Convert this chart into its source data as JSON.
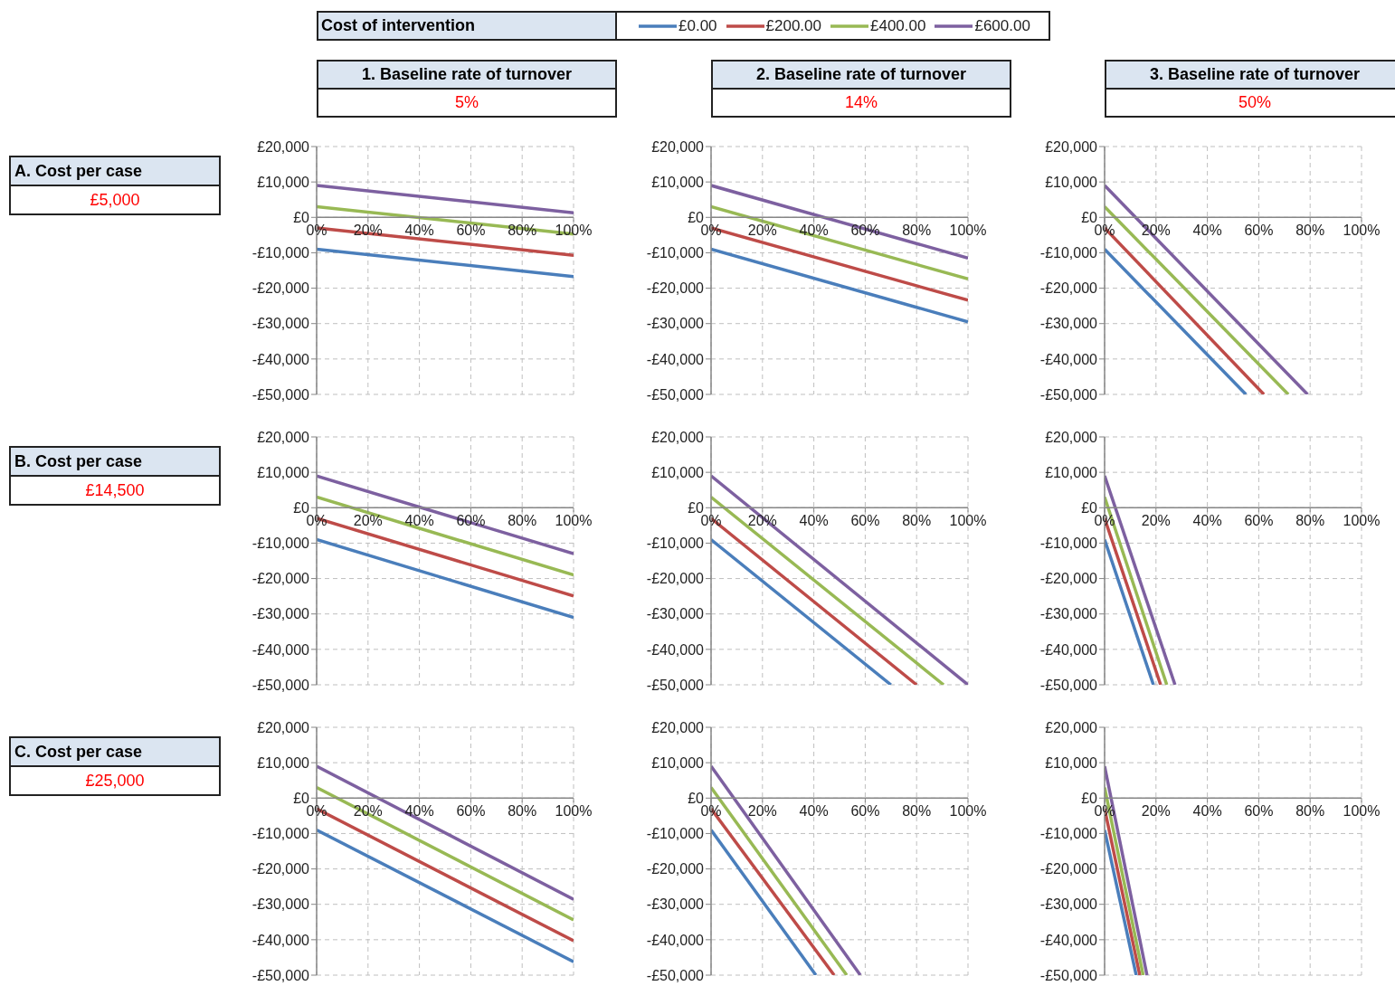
{
  "chart_data": [
    {
      "type": "line",
      "title": "1. Baseline rate of turnover",
      "subtitle": "5%",
      "annotations": [
        "A. Cost per case",
        "£5,000"
      ],
      "legend": "top",
      "legend_title": "Cost of intervention",
      "xlim": [
        0,
        100
      ],
      "xticks": [
        {
          "value": 0,
          "label": "0%"
        },
        {
          "value": 20,
          "label": "20%"
        },
        {
          "value": 40,
          "label": "40%"
        },
        {
          "value": 60,
          "label": "60%"
        },
        {
          "value": 80,
          "label": "80%"
        },
        {
          "value": 100,
          "label": "100%"
        }
      ],
      "ylim": [
        -50000,
        20000
      ],
      "yticks": [
        {
          "value": -50000,
          "label": "-£50,000"
        },
        {
          "value": -40000,
          "label": "-£40,000"
        },
        {
          "value": -30000,
          "label": "-£30,000"
        },
        {
          "value": -20000,
          "label": "-£20,000"
        },
        {
          "value": -10000,
          "label": "-£10,000"
        },
        {
          "value": 0,
          "label": "£0"
        },
        {
          "value": 10000,
          "label": "£10,000"
        },
        {
          "value": 20000,
          "label": "£20,000"
        }
      ],
      "grid": true,
      "series": [
        {
          "name": "£0.00",
          "color": "#4a7ebb",
          "x": [
            0,
            100
          ],
          "values": [
            -9000,
            -16700
          ]
        },
        {
          "name": "£200.00",
          "color": "#be4b48",
          "x": [
            0,
            100
          ],
          "values": [
            -3000,
            -10700
          ]
        },
        {
          "name": "£400.00",
          "color": "#98b954",
          "x": [
            0,
            100
          ],
          "values": [
            3000,
            -4700
          ]
        },
        {
          "name": "£600.00",
          "color": "#7d60a0",
          "x": [
            0,
            100
          ],
          "values": [
            9000,
            1300
          ]
        }
      ]
    },
    {
      "type": "line",
      "title": "2. Baseline rate of turnover",
      "subtitle": "14%",
      "xlim": [
        0,
        100
      ],
      "xticks": [
        {
          "value": 0,
          "label": "0%"
        },
        {
          "value": 20,
          "label": "20%"
        },
        {
          "value": 40,
          "label": "40%"
        },
        {
          "value": 60,
          "label": "60%"
        },
        {
          "value": 80,
          "label": "80%"
        },
        {
          "value": 100,
          "label": "100%"
        }
      ],
      "ylim": [
        -50000,
        20000
      ],
      "yticks": [
        {
          "value": -50000,
          "label": "-£50,000"
        },
        {
          "value": -40000,
          "label": "-£40,000"
        },
        {
          "value": -30000,
          "label": "-£30,000"
        },
        {
          "value": -20000,
          "label": "-£20,000"
        },
        {
          "value": -10000,
          "label": "-£10,000"
        },
        {
          "value": 0,
          "label": "£0"
        },
        {
          "value": 10000,
          "label": "£10,000"
        },
        {
          "value": 20000,
          "label": "£20,000"
        }
      ],
      "grid": true,
      "series": [
        {
          "color": "#4a7ebb",
          "x": [
            0,
            100
          ],
          "values": [
            -9000,
            -29500
          ]
        },
        {
          "color": "#be4b48",
          "x": [
            0,
            100
          ],
          "values": [
            -3000,
            -23400
          ]
        },
        {
          "color": "#98b954",
          "x": [
            0,
            100
          ],
          "values": [
            3000,
            -17400
          ]
        },
        {
          "color": "#7d60a0",
          "x": [
            0,
            100
          ],
          "values": [
            9000,
            -11500
          ]
        }
      ]
    },
    {
      "type": "line",
      "title": "3. Baseline rate of turnover",
      "subtitle": "50%",
      "xlim": [
        0,
        100
      ],
      "xticks": [
        {
          "value": 0,
          "label": "0%"
        },
        {
          "value": 20,
          "label": "20%"
        },
        {
          "value": 40,
          "label": "40%"
        },
        {
          "value": 60,
          "label": "60%"
        },
        {
          "value": 80,
          "label": "80%"
        },
        {
          "value": 100,
          "label": "100%"
        }
      ],
      "ylim": [
        -50000,
        20000
      ],
      "yticks": [
        {
          "value": -50000,
          "label": "-£50,000"
        },
        {
          "value": -40000,
          "label": "-£40,000"
        },
        {
          "value": -30000,
          "label": "-£30,000"
        },
        {
          "value": -20000,
          "label": "-£20,000"
        },
        {
          "value": -10000,
          "label": "-£10,000"
        },
        {
          "value": 0,
          "label": "£0"
        },
        {
          "value": 10000,
          "label": "£10,000"
        },
        {
          "value": 20000,
          "label": "£20,000"
        }
      ],
      "grid": true,
      "series": [
        {
          "color": "#4a7ebb",
          "x": [
            0,
            55
          ],
          "values": [
            -9000,
            -50000
          ]
        },
        {
          "color": "#be4b48",
          "x": [
            0,
            62
          ],
          "values": [
            -3000,
            -50000
          ]
        },
        {
          "color": "#98b954",
          "x": [
            0,
            71.5
          ],
          "values": [
            3000,
            -50000
          ]
        },
        {
          "color": "#7d60a0",
          "x": [
            0,
            79
          ],
          "values": [
            9000,
            -50000
          ]
        }
      ]
    },
    {
      "type": "line",
      "annotations": [
        "B. Cost per case",
        "£14,500"
      ],
      "xlim": [
        0,
        100
      ],
      "xticks": [
        {
          "value": 0,
          "label": "0%"
        },
        {
          "value": 20,
          "label": "20%"
        },
        {
          "value": 40,
          "label": "40%"
        },
        {
          "value": 60,
          "label": "60%"
        },
        {
          "value": 80,
          "label": "80%"
        },
        {
          "value": 100,
          "label": "100%"
        }
      ],
      "ylim": [
        -50000,
        20000
      ],
      "yticks": [
        {
          "value": -50000,
          "label": "-£50,000"
        },
        {
          "value": -40000,
          "label": "-£40,000"
        },
        {
          "value": -30000,
          "label": "-£30,000"
        },
        {
          "value": -20000,
          "label": "-£20,000"
        },
        {
          "value": -10000,
          "label": "-£10,000"
        },
        {
          "value": 0,
          "label": "£0"
        },
        {
          "value": 10000,
          "label": "£10,000"
        },
        {
          "value": 20000,
          "label": "£20,000"
        }
      ],
      "grid": true,
      "series": [
        {
          "color": "#4a7ebb",
          "x": [
            0,
            100
          ],
          "values": [
            -9000,
            -31000
          ]
        },
        {
          "color": "#be4b48",
          "x": [
            0,
            100
          ],
          "values": [
            -3000,
            -24900
          ]
        },
        {
          "color": "#98b954",
          "x": [
            0,
            100
          ],
          "values": [
            3000,
            -19000
          ]
        },
        {
          "color": "#7d60a0",
          "x": [
            0,
            100
          ],
          "values": [
            9000,
            -13000
          ]
        }
      ]
    },
    {
      "type": "line",
      "xlim": [
        0,
        100
      ],
      "xticks": [
        {
          "value": 0,
          "label": "0%"
        },
        {
          "value": 20,
          "label": "20%"
        },
        {
          "value": 40,
          "label": "40%"
        },
        {
          "value": 60,
          "label": "60%"
        },
        {
          "value": 80,
          "label": "80%"
        },
        {
          "value": 100,
          "label": "100%"
        }
      ],
      "ylim": [
        -50000,
        20000
      ],
      "yticks": [
        {
          "value": -50000,
          "label": "-£50,000"
        },
        {
          "value": -40000,
          "label": "-£40,000"
        },
        {
          "value": -30000,
          "label": "-£30,000"
        },
        {
          "value": -20000,
          "label": "-£20,000"
        },
        {
          "value": -10000,
          "label": "-£10,000"
        },
        {
          "value": 0,
          "label": "£0"
        },
        {
          "value": 10000,
          "label": "£10,000"
        },
        {
          "value": 20000,
          "label": "£20,000"
        }
      ],
      "grid": true,
      "series": [
        {
          "color": "#4a7ebb",
          "x": [
            0,
            70
          ],
          "values": [
            -9000,
            -50000
          ]
        },
        {
          "color": "#be4b48",
          "x": [
            0,
            80
          ],
          "values": [
            -3000,
            -50000
          ]
        },
        {
          "color": "#98b954",
          "x": [
            0,
            90.5
          ],
          "values": [
            3000,
            -50000
          ]
        },
        {
          "color": "#7d60a0",
          "x": [
            0,
            100
          ],
          "values": [
            9000,
            -50000
          ]
        }
      ]
    },
    {
      "type": "line",
      "xlim": [
        0,
        100
      ],
      "xticks": [
        {
          "value": 0,
          "label": "0%"
        },
        {
          "value": 20,
          "label": "20%"
        },
        {
          "value": 40,
          "label": "40%"
        },
        {
          "value": 60,
          "label": "60%"
        },
        {
          "value": 80,
          "label": "80%"
        },
        {
          "value": 100,
          "label": "100%"
        }
      ],
      "ylim": [
        -50000,
        20000
      ],
      "yticks": [
        {
          "value": -50000,
          "label": "-£50,000"
        },
        {
          "value": -40000,
          "label": "-£40,000"
        },
        {
          "value": -30000,
          "label": "-£30,000"
        },
        {
          "value": -20000,
          "label": "-£20,000"
        },
        {
          "value": -10000,
          "label": "-£10,000"
        },
        {
          "value": 0,
          "label": "£0"
        },
        {
          "value": 10000,
          "label": "£10,000"
        },
        {
          "value": 20000,
          "label": "£20,000"
        }
      ],
      "grid": true,
      "series": [
        {
          "color": "#4a7ebb",
          "x": [
            0,
            19
          ],
          "values": [
            -9000,
            -50000
          ]
        },
        {
          "color": "#be4b48",
          "x": [
            0,
            21.8
          ],
          "values": [
            -3000,
            -50000
          ]
        },
        {
          "color": "#98b954",
          "x": [
            0,
            24.2
          ],
          "values": [
            3000,
            -50000
          ]
        },
        {
          "color": "#7d60a0",
          "x": [
            0,
            27.4
          ],
          "values": [
            9000,
            -50000
          ]
        }
      ]
    },
    {
      "type": "line",
      "annotations": [
        "C. Cost per case",
        "£25,000"
      ],
      "xlim": [
        0,
        100
      ],
      "xticks": [
        {
          "value": 0,
          "label": "0%"
        },
        {
          "value": 20,
          "label": "20%"
        },
        {
          "value": 40,
          "label": "40%"
        },
        {
          "value": 60,
          "label": "60%"
        },
        {
          "value": 80,
          "label": "80%"
        },
        {
          "value": 100,
          "label": "100%"
        }
      ],
      "ylim": [
        -50000,
        20000
      ],
      "yticks": [
        {
          "value": -50000,
          "label": "-£50,000"
        },
        {
          "value": -40000,
          "label": "-£40,000"
        },
        {
          "value": -30000,
          "label": "-£30,000"
        },
        {
          "value": -20000,
          "label": "-£20,000"
        },
        {
          "value": -10000,
          "label": "-£10,000"
        },
        {
          "value": 0,
          "label": "£0"
        },
        {
          "value": 10000,
          "label": "£10,000"
        },
        {
          "value": 20000,
          "label": "£20,000"
        }
      ],
      "grid": true,
      "series": [
        {
          "color": "#4a7ebb",
          "x": [
            0,
            100
          ],
          "values": [
            -9000,
            -46200
          ]
        },
        {
          "color": "#be4b48",
          "x": [
            0,
            100
          ],
          "values": [
            -3000,
            -40300
          ]
        },
        {
          "color": "#98b954",
          "x": [
            0,
            100
          ],
          "values": [
            3000,
            -34400
          ]
        },
        {
          "color": "#7d60a0",
          "x": [
            0,
            100
          ],
          "values": [
            9000,
            -28600
          ]
        }
      ]
    },
    {
      "type": "line",
      "xlim": [
        0,
        100
      ],
      "xticks": [
        {
          "value": 0,
          "label": "0%"
        },
        {
          "value": 20,
          "label": "20%"
        },
        {
          "value": 40,
          "label": "40%"
        },
        {
          "value": 60,
          "label": "60%"
        },
        {
          "value": 80,
          "label": "80%"
        },
        {
          "value": 100,
          "label": "100%"
        }
      ],
      "ylim": [
        -50000,
        20000
      ],
      "yticks": [
        {
          "value": -50000,
          "label": "-£50,000"
        },
        {
          "value": -40000,
          "label": "-£40,000"
        },
        {
          "value": -30000,
          "label": "-£30,000"
        },
        {
          "value": -20000,
          "label": "-£20,000"
        },
        {
          "value": -10000,
          "label": "-£10,000"
        },
        {
          "value": 0,
          "label": "£0"
        },
        {
          "value": 10000,
          "label": "£10,000"
        },
        {
          "value": 20000,
          "label": "£20,000"
        }
      ],
      "grid": true,
      "series": [
        {
          "color": "#4a7ebb",
          "x": [
            0,
            40.8
          ],
          "values": [
            -9000,
            -50000
          ]
        },
        {
          "color": "#be4b48",
          "x": [
            0,
            47.9
          ],
          "values": [
            -3000,
            -50000
          ]
        },
        {
          "color": "#98b954",
          "x": [
            0,
            52.8
          ],
          "values": [
            3000,
            -50000
          ]
        },
        {
          "color": "#7d60a0",
          "x": [
            0,
            58.1
          ],
          "values": [
            9000,
            -50000
          ]
        }
      ]
    },
    {
      "type": "line",
      "xlim": [
        0,
        100
      ],
      "xticks": [
        {
          "value": 0,
          "label": "0%"
        },
        {
          "value": 20,
          "label": "20%"
        },
        {
          "value": 40,
          "label": "40%"
        },
        {
          "value": 60,
          "label": "60%"
        },
        {
          "value": 80,
          "label": "80%"
        },
        {
          "value": 100,
          "label": "100%"
        }
      ],
      "ylim": [
        -50000,
        20000
      ],
      "yticks": [
        {
          "value": -50000,
          "label": "-£50,000"
        },
        {
          "value": -40000,
          "label": "-£40,000"
        },
        {
          "value": -30000,
          "label": "-£30,000"
        },
        {
          "value": -20000,
          "label": "-£20,000"
        },
        {
          "value": -10000,
          "label": "-£10,000"
        },
        {
          "value": 0,
          "label": "£0"
        },
        {
          "value": 10000,
          "label": "£10,000"
        },
        {
          "value": 20000,
          "label": "£20,000"
        }
      ],
      "grid": true,
      "series": [
        {
          "color": "#4a7ebb",
          "x": [
            0,
            12.3
          ],
          "values": [
            -9000,
            -50000
          ]
        },
        {
          "color": "#be4b48",
          "x": [
            0,
            13.7
          ],
          "values": [
            -3000,
            -50000
          ]
        },
        {
          "color": "#98b954",
          "x": [
            0,
            15
          ],
          "values": [
            3000,
            -50000
          ]
        },
        {
          "color": "#7d60a0",
          "x": [
            0,
            16.5
          ],
          "values": [
            9000,
            -50000
          ]
        }
      ]
    }
  ]
}
